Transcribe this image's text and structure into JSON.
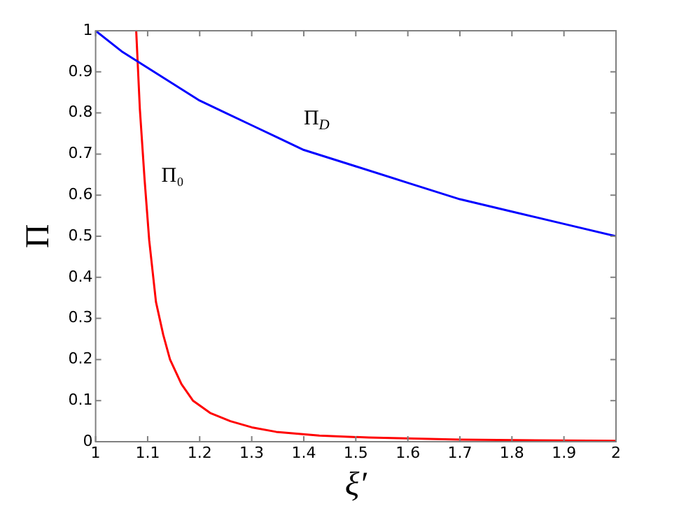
{
  "chart_data": {
    "type": "line",
    "xlabel": "ξ′",
    "ylabel": "Π",
    "xlim": [
      1,
      2
    ],
    "xticks": [
      1,
      1.1,
      1.2,
      1.3,
      1.4,
      1.5,
      1.6,
      1.7,
      1.8,
      1.9,
      2
    ],
    "ylim": [
      0,
      1
    ],
    "yticks": [
      0,
      0.1,
      0.2,
      0.3,
      0.4,
      0.5,
      0.6,
      0.7,
      0.8,
      0.9,
      1
    ],
    "grid": false,
    "legend": false,
    "marker": "none",
    "line_style": "solid",
    "series": [
      {
        "name": "Π$_{D}$",
        "color": "#0000ff",
        "x": [
          1,
          1.05,
          1.1,
          1.15,
          1.2,
          1.25,
          1.3,
          1.35,
          1.4,
          1.45,
          1.5,
          1.6,
          1.7,
          1.8,
          1.9,
          2
        ],
        "values": [
          1,
          0.95,
          0.91,
          0.87,
          0.83,
          0.8,
          0.77,
          0.74,
          0.71,
          0.69,
          0.67,
          0.63,
          0.59,
          0.56,
          0.53,
          0.5
        ]
      },
      {
        "name": "Π₀",
        "color": "#ff0000",
        "x": [
          1.078,
          1.085,
          1.094,
          1.103,
          1.116,
          1.13,
          1.143,
          1.165,
          1.187,
          1.22,
          1.259,
          1.3,
          1.347,
          1.43,
          1.525,
          1.7,
          2
        ],
        "values": [
          1,
          0.81,
          0.64,
          0.49,
          0.34,
          0.26,
          0.2,
          0.14,
          0.1,
          0.07,
          0.05,
          0.035,
          0.024,
          0.015,
          0.01,
          0.005,
          0.002
        ]
      }
    ]
  }
}
